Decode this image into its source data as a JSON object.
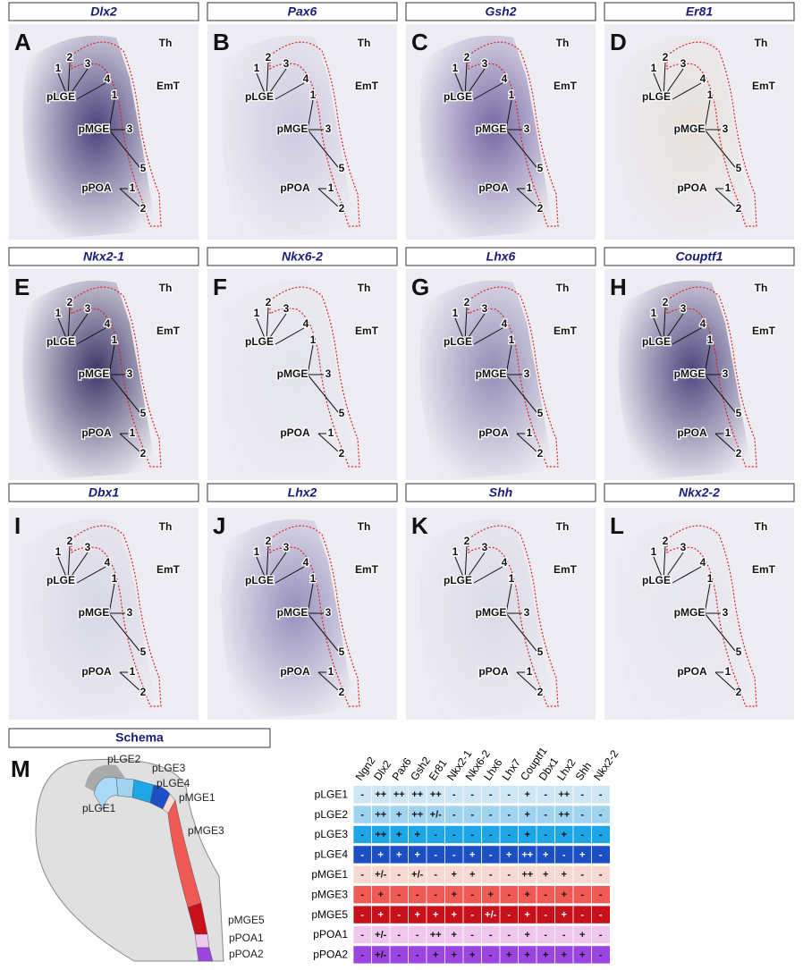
{
  "panels": [
    {
      "letter": "A",
      "gene": "Dlx2",
      "labels": [
        "1",
        "2",
        "3",
        "4",
        "pLGE",
        "1",
        "pMGE",
        "3",
        "5",
        "pPOA",
        "1",
        "2",
        "Th",
        "EmT"
      ]
    },
    {
      "letter": "B",
      "gene": "Pax6",
      "labels": [
        "1",
        "2",
        "3",
        "4",
        "pLGE",
        "1",
        "pMGE",
        "3",
        "5",
        "pPOA",
        "1",
        "2",
        "Th",
        "EmT"
      ]
    },
    {
      "letter": "C",
      "gene": "Gsh2",
      "labels": [
        "1",
        "2",
        "3",
        "4",
        "pLGE",
        "1",
        "pMGE",
        "3",
        "5",
        "pPOA",
        "1",
        "2",
        "Th",
        "EmT"
      ]
    },
    {
      "letter": "D",
      "gene": "Er81",
      "labels": [
        "1",
        "2",
        "3",
        "4",
        "pLGE",
        "1",
        "pMGE",
        "3",
        "5",
        "pPOA",
        "1",
        "2",
        "Th",
        "EmT"
      ]
    },
    {
      "letter": "E",
      "gene": "Nkx2-1",
      "labels": [
        "1",
        "2",
        "3",
        "4",
        "pLGE",
        "1",
        "pMGE",
        "3",
        "5",
        "pPOA",
        "1",
        "2",
        "Th",
        "EmT"
      ]
    },
    {
      "letter": "F",
      "gene": "Nkx6-2",
      "labels": [
        "1",
        "2",
        "3",
        "4",
        "pLGE",
        "1",
        "pMGE",
        "3",
        "5",
        "pPOA",
        "1",
        "2",
        "Th",
        "EmT"
      ]
    },
    {
      "letter": "G",
      "gene": "Lhx6",
      "labels": [
        "1",
        "2",
        "3",
        "4",
        "pLGE",
        "1",
        "pMGE",
        "3",
        "5",
        "pPOA",
        "1",
        "2",
        "Th",
        "EmT"
      ]
    },
    {
      "letter": "H",
      "gene": "Couptf1",
      "labels": [
        "1",
        "2",
        "3",
        "4",
        "pLGE",
        "1",
        "pMGE",
        "3",
        "5",
        "pPOA",
        "1",
        "2",
        "Th",
        "EmT"
      ]
    },
    {
      "letter": "I",
      "gene": "Dbx1",
      "labels": [
        "1",
        "2",
        "3",
        "4",
        "pLGE",
        "1",
        "pMGE",
        "3",
        "5",
        "pPOA",
        "1",
        "2",
        "Th",
        "EmT"
      ]
    },
    {
      "letter": "J",
      "gene": "Lhx2",
      "labels": [
        "1",
        "2",
        "3",
        "4",
        "pLGE",
        "1",
        "pMGE",
        "3",
        "5",
        "pPOA",
        "1",
        "2",
        "Th",
        "EmT"
      ]
    },
    {
      "letter": "K",
      "gene": "Shh",
      "labels": [
        "1",
        "2",
        "3",
        "4",
        "pLGE",
        "1",
        "pMGE",
        "3",
        "5",
        "pPOA",
        "1",
        "2",
        "Th",
        "EmT"
      ]
    },
    {
      "letter": "L",
      "gene": "Nkx2-2",
      "labels": [
        "1",
        "2",
        "3",
        "4",
        "pLGE",
        "1",
        "pMGE",
        "3",
        "5",
        "pPOA",
        "1",
        "2",
        "Th",
        "EmT"
      ]
    }
  ],
  "schema": {
    "letter": "M",
    "title": "Schema",
    "labels": [
      "pLGE2",
      "pLGE3",
      "pLGE4",
      "pMGE1",
      "pMGE3",
      "pMGE5",
      "pPOA1",
      "pPOA2",
      "pLGE1"
    ]
  },
  "table": {
    "columns": [
      "Ngn2",
      "Dlx2",
      "Pax6",
      "Gsh2",
      "Er81",
      "Nkx2-1",
      "Nkx6-2",
      "Lhx6",
      "Lhx7",
      "Couptf1",
      "Dbx1",
      "Lhx2",
      "Shh",
      "Nkx2-2"
    ],
    "rows": [
      {
        "label": "pLGE1",
        "cells": [
          "-",
          "++",
          "++",
          "++",
          "++",
          "-",
          "-",
          "-",
          "-",
          "+",
          "-",
          "++",
          "-",
          "-"
        ]
      },
      {
        "label": "pLGE2",
        "cells": [
          "-",
          "++",
          "+",
          "++",
          "+/-",
          "-",
          "-",
          "-",
          "-",
          "+",
          "-",
          "++",
          "-",
          "-"
        ]
      },
      {
        "label": "pLGE3",
        "cells": [
          "-",
          "++",
          "+",
          "+",
          "-",
          "-",
          "-",
          "-",
          "-",
          "+",
          "-",
          "+",
          "-",
          "-"
        ]
      },
      {
        "label": "pLGE4",
        "cells": [
          "-",
          "+",
          "+",
          "+",
          "-",
          "-",
          "+",
          "-",
          "+",
          "++",
          "+",
          "-",
          "+",
          "-"
        ]
      },
      {
        "label": "pMGE1",
        "cells": [
          "-",
          "+/-",
          "-",
          "+/-",
          "-",
          "+",
          "+",
          "-",
          "-",
          "++",
          "+",
          "+",
          "-",
          "-"
        ]
      },
      {
        "label": "pMGE3",
        "cells": [
          "-",
          "+",
          "-",
          "-",
          "-",
          "+",
          "-",
          "+",
          "-",
          "+",
          "-",
          "+",
          "-",
          "-"
        ]
      },
      {
        "label": "pMGE5",
        "cells": [
          "-",
          "+",
          "-",
          "+",
          "+",
          "+",
          "-",
          "+/-",
          "-",
          "+",
          "-",
          "+",
          "-",
          "-"
        ]
      },
      {
        "label": "pPOA1",
        "cells": [
          "-",
          "+/-",
          "-",
          "-",
          "++",
          "+",
          "-",
          "-",
          "-",
          "+",
          "-",
          "-",
          "+",
          "-"
        ]
      },
      {
        "label": "pPOA2",
        "cells": [
          "-",
          "+/-",
          "-",
          "-",
          "+",
          "+",
          "+",
          "-",
          "+",
          "+",
          "+",
          "+",
          "+",
          "-"
        ]
      }
    ]
  }
}
